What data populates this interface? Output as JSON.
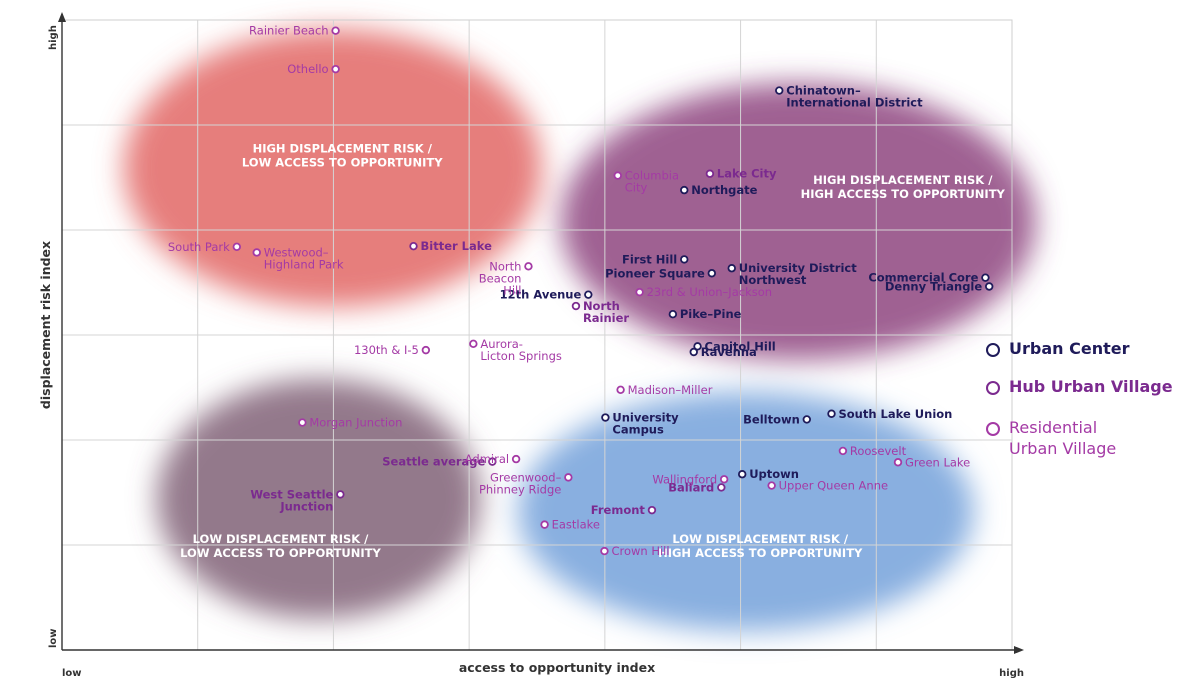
{
  "chart_data": {
    "type": "scatter",
    "xlabel": "access to opportunity index",
    "ylabel": "displacement risk index",
    "x_tick_labels": [
      "low",
      "high"
    ],
    "y_tick_labels": [
      "low",
      "high"
    ],
    "xlim": [
      0,
      100
    ],
    "ylim": [
      0,
      100
    ],
    "grid": true,
    "legend_position": "right",
    "quadrant_labels": [
      {
        "name": "q-high-risk-low-access",
        "lines": [
          "HIGH DISPLACEMENT RISK /",
          "LOW ACCESS TO OPPORTUNITY"
        ],
        "x": 29.5,
        "y": 79,
        "color": "#ffffff"
      },
      {
        "name": "q-high-risk-high-access",
        "lines": [
          "HIGH DISPLACEMENT RISK /",
          "HIGH ACCESS TO OPPORTUNITY"
        ],
        "x": 88.5,
        "y": 74,
        "color": "#ffffff"
      },
      {
        "name": "q-low-risk-low-access",
        "lines": [
          "LOW DISPLACEMENT RISK /",
          "LOW ACCESS TO OPPORTUNITY"
        ],
        "x": 23,
        "y": 17,
        "color": "#ffffff"
      },
      {
        "name": "q-low-risk-high-access",
        "lines": [
          "LOW DISPLACEMENT RISK /",
          "HIGH ACCESS TO OPPORTUNITY"
        ],
        "x": 73.5,
        "y": 17,
        "color": "#ffffff"
      }
    ],
    "zones": [
      {
        "name": "zone-high-risk-low-access",
        "color": "#e0605f",
        "cx": 28.5,
        "cy": 76.5,
        "rx": 22,
        "ry": 22
      },
      {
        "name": "zone-high-risk-high-access",
        "color": "#8a3d7a",
        "cx": 77.5,
        "cy": 68,
        "rx": 25,
        "ry": 22
      },
      {
        "name": "zone-low-risk-low-access",
        "color": "#7b5b72",
        "cx": 27,
        "cy": 24,
        "rx": 17,
        "ry": 19
      },
      {
        "name": "zone-low-risk-high-access",
        "color": "#6f9ed9",
        "cx": 72,
        "cy": 22,
        "rx": 24,
        "ry": 19
      }
    ],
    "series": [
      {
        "name": "Urban Center",
        "color": "#1f1b5a",
        "points": [
          {
            "label": "Chinatown–\nInternational District",
            "x": 75.5,
            "y": 88.8,
            "anchor": "start"
          },
          {
            "label": "Northgate",
            "x": 65.5,
            "y": 73,
            "anchor": "start"
          },
          {
            "label": "First Hill",
            "x": 65.5,
            "y": 62,
            "anchor": "end"
          },
          {
            "label": "University District\nNorthwest",
            "x": 70.5,
            "y": 60.6,
            "anchor": "start"
          },
          {
            "label": "Pioneer Square",
            "x": 68.4,
            "y": 59.8,
            "anchor": "end"
          },
          {
            "label": "12th Avenue",
            "x": 55.4,
            "y": 56.4,
            "anchor": "end"
          },
          {
            "label": "Commercial Core",
            "x": 97.2,
            "y": 59.1,
            "anchor": "end"
          },
          {
            "label": "Denny Triangle",
            "x": 97.6,
            "y": 57.7,
            "anchor": "end"
          },
          {
            "label": "Pike–Pine",
            "x": 64.3,
            "y": 53.3,
            "anchor": "start"
          },
          {
            "label": "Capitol Hill",
            "x": 66.9,
            "y": 48.2,
            "anchor": "start"
          },
          {
            "label": "Ravenna",
            "x": 66.5,
            "y": 47.3,
            "anchor": "start"
          },
          {
            "label": "University\nCampus",
            "x": 57.2,
            "y": 36.9,
            "anchor": "start"
          },
          {
            "label": "Belltown",
            "x": 78.4,
            "y": 36.6,
            "anchor": "end"
          },
          {
            "label": "South Lake Union",
            "x": 81,
            "y": 37.5,
            "anchor": "start"
          },
          {
            "label": "Uptown",
            "x": 71.6,
            "y": 27.9,
            "anchor": "start"
          }
        ]
      },
      {
        "name": "Hub Urban Village",
        "color": "#7b2a8f",
        "points": [
          {
            "label": "Lake City",
            "x": 68.2,
            "y": 75.6,
            "anchor": "start"
          },
          {
            "label": "Bitter Lake",
            "x": 37,
            "y": 64.1,
            "anchor": "start"
          },
          {
            "label": "North\nRainier",
            "x": 54.1,
            "y": 54.6,
            "anchor": "start"
          },
          {
            "label": "Seattle average",
            "x": 45.3,
            "y": 29.9,
            "anchor": "end"
          },
          {
            "label": "West Seattle\nJunction",
            "x": 29.3,
            "y": 24.7,
            "anchor": "end"
          },
          {
            "label": "Fremont",
            "x": 62.1,
            "y": 22.2,
            "anchor": "end"
          },
          {
            "label": "Ballard",
            "x": 69.4,
            "y": 25.8,
            "anchor": "end"
          }
        ]
      },
      {
        "name": "Residential\nUrban Village",
        "color": "#a43aa5",
        "points": [
          {
            "label": "Rainier Beach",
            "x": 28.8,
            "y": 98.3,
            "anchor": "end"
          },
          {
            "label": "Othello",
            "x": 28.8,
            "y": 92.2,
            "anchor": "end"
          },
          {
            "label": "Columbia\nCity",
            "x": 58.5,
            "y": 75.3,
            "anchor": "start"
          },
          {
            "label": "South Park",
            "x": 18.4,
            "y": 64,
            "anchor": "end"
          },
          {
            "label": "Westwood–\nHighland Park",
            "x": 20.5,
            "y": 63.1,
            "anchor": "start"
          },
          {
            "label": "North\nBeacon\nHill",
            "x": 49.1,
            "y": 60.9,
            "anchor": "end"
          },
          {
            "label": "23rd & Union–Jackson",
            "x": 60.8,
            "y": 56.8,
            "anchor": "start"
          },
          {
            "label": "Aurora-\nLicton Springs",
            "x": 43.3,
            "y": 48.6,
            "anchor": "start"
          },
          {
            "label": "130th & I-5",
            "x": 38.3,
            "y": 47.6,
            "anchor": "end"
          },
          {
            "label": "Madison–Miller",
            "x": 58.8,
            "y": 41.3,
            "anchor": "start"
          },
          {
            "label": "Morgan Junction",
            "x": 25.3,
            "y": 36.1,
            "anchor": "start"
          },
          {
            "label": "Admiral",
            "x": 47.8,
            "y": 30.3,
            "anchor": "end"
          },
          {
            "label": "Roosevelt",
            "x": 82.2,
            "y": 31.6,
            "anchor": "start"
          },
          {
            "label": "Green Lake",
            "x": 88,
            "y": 29.8,
            "anchor": "start"
          },
          {
            "label": "Greenwood–\nPhinney Ridge",
            "x": 53.3,
            "y": 27.4,
            "anchor": "end"
          },
          {
            "label": "Wallingford",
            "x": 69.7,
            "y": 27.1,
            "anchor": "end"
          },
          {
            "label": "Upper Queen Anne",
            "x": 74.7,
            "y": 26.1,
            "anchor": "start"
          },
          {
            "label": "Eastlake",
            "x": 50.8,
            "y": 19.9,
            "anchor": "start"
          },
          {
            "label": "Crown Hill",
            "x": 57.1,
            "y": 15.7,
            "anchor": "start"
          }
        ]
      }
    ]
  }
}
